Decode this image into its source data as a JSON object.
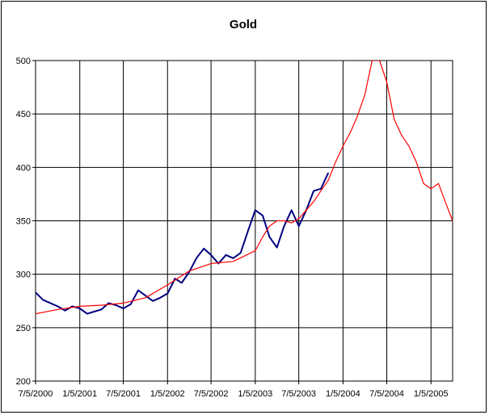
{
  "chart_data": {
    "type": "line",
    "title": "Gold",
    "xlabel": "",
    "ylabel": "",
    "ylim": [
      200,
      500
    ],
    "yticks": [
      200,
      250,
      300,
      350,
      400,
      450,
      500
    ],
    "xlim": [
      "2000-07-05",
      "2005-04-05"
    ],
    "xticks": [
      "7/5/2000",
      "1/5/2001",
      "7/5/2001",
      "1/5/2002",
      "7/5/2002",
      "1/5/2003",
      "7/5/2003",
      "1/5/2004",
      "7/5/2004",
      "1/5/2005"
    ],
    "grid": true,
    "legend": "none",
    "series": [
      {
        "color": "#000080",
        "x": [
          "2000-07-05",
          "2000-08-05",
          "2000-09-05",
          "2000-10-05",
          "2000-11-05",
          "2000-12-05",
          "2001-01-05",
          "2001-02-05",
          "2001-03-05",
          "2001-04-05",
          "2001-05-05",
          "2001-06-05",
          "2001-07-05",
          "2001-08-05",
          "2001-09-05",
          "2001-10-05",
          "2001-11-05",
          "2001-12-05",
          "2002-01-05",
          "2002-02-05",
          "2002-03-05",
          "2002-04-05",
          "2002-05-05",
          "2002-06-05",
          "2002-07-05",
          "2002-08-05",
          "2002-09-05",
          "2002-10-05",
          "2002-11-05",
          "2002-12-05",
          "2003-01-05",
          "2003-02-05",
          "2003-03-05",
          "2003-04-05",
          "2003-05-05",
          "2003-06-05",
          "2003-07-05",
          "2003-08-05",
          "2003-09-05",
          "2003-10-05",
          "2003-11-05"
        ],
        "values": [
          283,
          276,
          273,
          270,
          266,
          270,
          268,
          263,
          265,
          267,
          273,
          271,
          268,
          272,
          285,
          280,
          275,
          278,
          282,
          296,
          292,
          302,
          315,
          324,
          318,
          310,
          318,
          315,
          320,
          340,
          360,
          355,
          335,
          325,
          345,
          360,
          345,
          360,
          378,
          380,
          395
        ]
      },
      {
        "color": "#ff0000",
        "x": [
          "2000-07-05",
          "2000-10-05",
          "2001-01-05",
          "2001-04-05",
          "2001-07-05",
          "2001-10-05",
          "2002-01-05",
          "2002-04-05",
          "2002-07-05",
          "2002-10-05",
          "2003-01-05",
          "2003-02-05",
          "2003-03-05",
          "2003-04-05",
          "2003-05-05",
          "2003-06-05",
          "2003-07-05",
          "2003-08-05",
          "2003-09-05",
          "2003-10-05",
          "2003-11-05",
          "2003-12-05",
          "2004-01-05",
          "2004-02-05",
          "2004-03-05",
          "2004-04-05",
          "2004-05-05",
          "2004-06-05",
          "2004-07-05",
          "2004-08-05",
          "2004-09-05",
          "2004-10-05",
          "2004-11-05",
          "2004-12-05",
          "2005-01-05",
          "2005-02-05",
          "2005-03-05",
          "2005-04-05"
        ],
        "values": [
          263,
          267,
          270,
          271,
          273,
          278,
          290,
          303,
          310,
          312,
          322,
          335,
          345,
          350,
          350,
          348,
          352,
          360,
          368,
          378,
          388,
          405,
          420,
          433,
          448,
          468,
          500,
          500,
          480,
          445,
          430,
          420,
          405,
          385,
          380,
          385,
          368,
          350
        ]
      }
    ]
  }
}
